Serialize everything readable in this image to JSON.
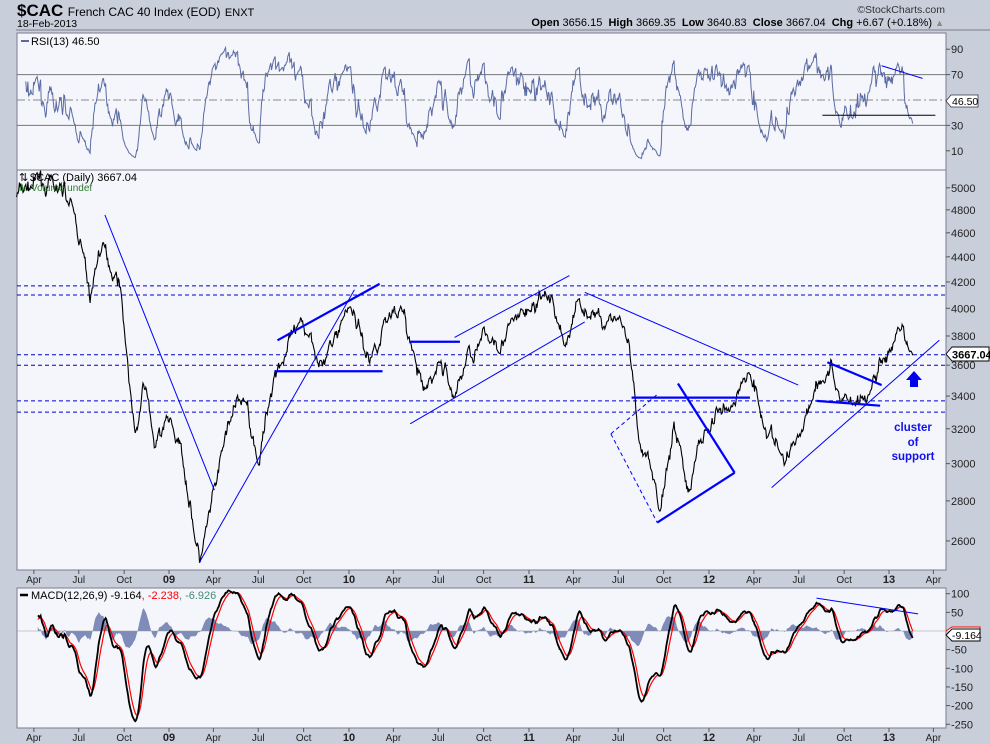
{
  "header": {
    "symbol": "$CAC",
    "name": "French CAC 40 Index (EOD)",
    "exchange": "ENXT",
    "date": "18-Feb-2013",
    "copyright": "©StockCharts.com",
    "open_label": "Open",
    "open": "3656.15",
    "high_label": "High",
    "high": "3669.35",
    "low_label": "Low",
    "low": "3640.83",
    "close_label": "Close",
    "close": "3667.04",
    "chg_label": "Chg",
    "chg": "+6.67 (+0.18%)"
  },
  "colors": {
    "price": "#000000",
    "rsi": "#5b6aa3",
    "macd": "#000000",
    "signal": "#ff0000",
    "histogram": "#6a78ac",
    "annotation": "#0000ff",
    "background": "#f4f6fb",
    "frame": "#c9cedb"
  },
  "rsi_panel": {
    "label": "RSI(13) 46.50",
    "value": "46.50",
    "ylim": [
      0,
      100
    ],
    "ticks": [
      "90",
      "70",
      "30",
      "10"
    ],
    "levels": [
      70,
      30
    ],
    "midline": 50,
    "annotations": [
      {
        "from": [
          "2012-12-16",
          77
        ],
        "to": [
          "2013-03-10",
          67
        ]
      },
      {
        "from": [
          "2012-08-18",
          38
        ],
        "to": [
          "2013-04-05",
          38
        ]
      }
    ]
  },
  "price_panel": {
    "legend": "$CAC (Daily) 3667.04",
    "volume_legend": "Volume undef",
    "last_value": "3667.04",
    "scale": "log",
    "ticks": [
      "5000",
      "4800",
      "4600",
      "4400",
      "4200",
      "4000",
      "3800",
      "3600",
      "3400",
      "3200",
      "3000",
      "2800",
      "2600"
    ],
    "support_levels": [
      4170,
      4100,
      3670,
      3600,
      3370,
      3300
    ],
    "trendlines": [
      {
        "from": [
          "2008-08-23",
          4755
        ],
        "to": [
          "2009-04-03",
          2857
        ],
        "bold": false
      },
      {
        "from": [
          "2009-03-04",
          2500
        ],
        "to": [
          "2010-01-12",
          4140
        ],
        "bold": false
      },
      {
        "from": [
          "2009-08-09",
          3770
        ],
        "to": [
          "2010-03-04",
          4185
        ],
        "bold": true
      },
      {
        "from": [
          "2009-08-03",
          3560
        ],
        "to": [
          "2010-03-10",
          3560
        ],
        "bold": true
      },
      {
        "from": [
          "2010-05-05",
          3760
        ],
        "to": [
          "2010-08-14",
          3760
        ],
        "bold": true
      },
      {
        "from": [
          "2010-05-05",
          3230
        ],
        "to": [
          "2011-04-24",
          3900
        ],
        "bold": false
      },
      {
        "from": [
          "2010-08-03",
          3790
        ],
        "to": [
          "2011-03-24",
          4250
        ],
        "bold": false
      },
      {
        "from": [
          "2011-04-24",
          4120
        ],
        "to": [
          "2012-06-30",
          3470
        ],
        "bold": false
      },
      {
        "from": [
          "2011-07-28",
          3390
        ],
        "to": [
          "2012-03-24",
          3390
        ],
        "bold": true
      },
      {
        "from": [
          "2011-10-30",
          3480
        ],
        "to": [
          "2012-02-22",
          2950
        ],
        "bold": true
      },
      {
        "from": [
          "2011-09-18",
          2690
        ],
        "to": [
          "2012-02-22",
          2950
        ],
        "bold": true
      },
      {
        "from": [
          "2011-06-16",
          3170
        ],
        "to": [
          "2011-09-18",
          3410
        ],
        "bold": false,
        "dashed": true
      },
      {
        "from": [
          "2011-06-16",
          3170
        ],
        "to": [
          "2011-09-18",
          2690
        ],
        "bold": false,
        "dashed": true
      },
      {
        "from": [
          "2012-05-07",
          2870
        ],
        "to": [
          "2013-04-13",
          3770
        ],
        "bold": false
      },
      {
        "from": [
          "2012-08-28",
          3620
        ],
        "to": [
          "2012-12-16",
          3470
        ],
        "bold": true
      },
      {
        "from": [
          "2012-08-06",
          3370
        ],
        "to": [
          "2012-12-13",
          3340
        ],
        "bold": true
      }
    ],
    "arrow_icon": "arrow-up",
    "annotation_text": [
      "cluster",
      "of",
      "support"
    ]
  },
  "macd_panel": {
    "label_main": "MACD(12,26,9) -9.164",
    "label_signal": ", -2.238",
    "label_hist": ", -6.926",
    "value": "-9.164",
    "ylim": [
      -260,
      110
    ],
    "ticks": [
      "100",
      "50",
      "-50",
      "-100",
      "-150",
      "-200",
      "-250"
    ],
    "annotation": {
      "from": [
        "2012-08-06",
        88
      ],
      "to": [
        "2013-03-01",
        46
      ]
    }
  },
  "x_axis": {
    "ticks": [
      {
        "label": "Apr",
        "date": "2008-04-01"
      },
      {
        "label": "Jul",
        "date": "2008-07-01"
      },
      {
        "label": "Oct",
        "date": "2008-10-01"
      },
      {
        "label": "09",
        "date": "2009-01-01",
        "bold": true
      },
      {
        "label": "Apr",
        "date": "2009-04-01"
      },
      {
        "label": "Jul",
        "date": "2009-07-01"
      },
      {
        "label": "Oct",
        "date": "2009-10-01"
      },
      {
        "label": "10",
        "date": "2010-01-01",
        "bold": true
      },
      {
        "label": "Apr",
        "date": "2010-04-01"
      },
      {
        "label": "Jul",
        "date": "2010-07-01"
      },
      {
        "label": "Oct",
        "date": "2010-10-01"
      },
      {
        "label": "11",
        "date": "2011-01-01",
        "bold": true
      },
      {
        "label": "Apr",
        "date": "2011-04-01"
      },
      {
        "label": "Jul",
        "date": "2011-07-01"
      },
      {
        "label": "Oct",
        "date": "2011-10-01"
      },
      {
        "label": "12",
        "date": "2012-01-01",
        "bold": true
      },
      {
        "label": "Apr",
        "date": "2012-04-01"
      },
      {
        "label": "Jul",
        "date": "2012-07-01"
      },
      {
        "label": "Oct",
        "date": "2012-10-01"
      },
      {
        "label": "13",
        "date": "2013-01-01",
        "bold": true
      },
      {
        "label": "Apr",
        "date": "2013-04-01"
      }
    ]
  },
  "chart_data": {
    "type": "line",
    "title": "$CAC French CAC 40 Index (EOD)",
    "yscale": "log",
    "ylim": [
      2400,
      5300
    ],
    "xlim": [
      "2008-02-26",
      "2013-04-20"
    ],
    "grid": false,
    "series": [
      {
        "name": "$CAC (Daily)",
        "points": [
          [
            "2008-02-26",
            4930
          ],
          [
            "2008-04-13",
            5060
          ],
          [
            "2008-05-24",
            4930
          ],
          [
            "2008-06-03",
            5000
          ],
          [
            "2008-07-04",
            4540
          ],
          [
            "2008-07-24",
            4060
          ],
          [
            "2008-08-13",
            4490
          ],
          [
            "2008-09-23",
            4220
          ],
          [
            "2008-10-23",
            3135
          ],
          [
            "2008-11-12",
            3470
          ],
          [
            "2008-12-03",
            3080
          ],
          [
            "2009-01-03",
            3260
          ],
          [
            "2009-02-02",
            2980
          ],
          [
            "2009-03-04",
            2500
          ],
          [
            "2009-04-03",
            2810
          ],
          [
            "2009-05-04",
            3260
          ],
          [
            "2009-06-03",
            3380
          ],
          [
            "2009-07-04",
            3030
          ],
          [
            "2009-08-03",
            3580
          ],
          [
            "2009-09-02",
            3740
          ],
          [
            "2009-10-13",
            3840
          ],
          [
            "2009-11-12",
            3600
          ],
          [
            "2010-01-03",
            4060
          ],
          [
            "2010-02-12",
            3630
          ],
          [
            "2010-03-14",
            3910
          ],
          [
            "2010-04-13",
            4060
          ],
          [
            "2010-05-08",
            3700
          ],
          [
            "2010-06-03",
            3380
          ],
          [
            "2010-07-04",
            3630
          ],
          [
            "2010-08-03",
            3400
          ],
          [
            "2010-09-02",
            3700
          ],
          [
            "2010-10-13",
            3770
          ],
          [
            "2010-11-23",
            3840
          ],
          [
            "2011-01-03",
            3990
          ],
          [
            "2011-02-12",
            4090
          ],
          [
            "2011-03-14",
            3740
          ],
          [
            "2011-04-13",
            4060
          ],
          [
            "2011-05-24",
            3910
          ],
          [
            "2011-07-04",
            3950
          ],
          [
            "2011-07-24",
            3680
          ],
          [
            "2011-08-13",
            3030
          ],
          [
            "2011-09-02",
            2980
          ],
          [
            "2011-09-23",
            2750
          ],
          [
            "2011-10-23",
            3260
          ],
          [
            "2011-11-23",
            2830
          ],
          [
            "2011-12-13",
            3135
          ],
          [
            "2012-01-13",
            3260
          ],
          [
            "2012-02-22",
            3380
          ],
          [
            "2012-03-24",
            3580
          ],
          [
            "2012-04-23",
            3260
          ],
          [
            "2012-06-03",
            2980
          ],
          [
            "2012-07-04",
            3200
          ],
          [
            "2012-08-03",
            3480
          ],
          [
            "2012-09-02",
            3580
          ],
          [
            "2012-09-23",
            3400
          ],
          [
            "2012-10-23",
            3380
          ],
          [
            "2012-11-23",
            3400
          ],
          [
            "2012-12-13",
            3630
          ],
          [
            "2013-01-23",
            3770
          ],
          [
            "2013-02-12",
            3680
          ],
          [
            "2013-02-18",
            3667.04
          ]
        ]
      }
    ]
  }
}
